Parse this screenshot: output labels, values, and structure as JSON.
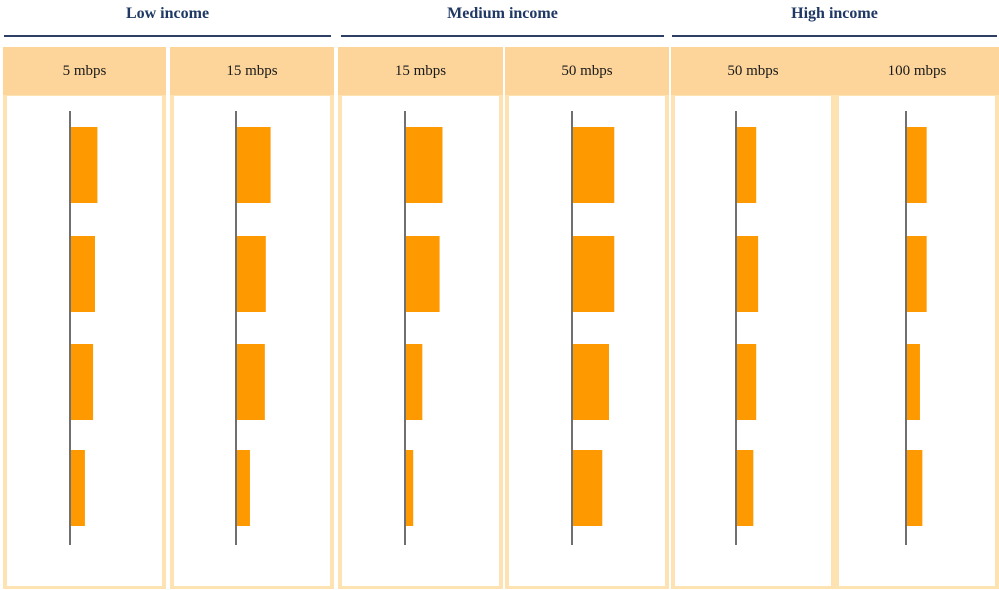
{
  "colors": {
    "bar": "#ff9900",
    "axis": "#707070",
    "panel_fill": "#fde3b2",
    "panel_header": "#fdd59a",
    "group_title": "#1f3864"
  },
  "groups": [
    {
      "label": "Low income"
    },
    {
      "label": "Medium income"
    },
    {
      "label": "High income"
    }
  ],
  "chart_data": {
    "type": "bar",
    "orientation": "horizontal",
    "grid": false,
    "axis_labels_shown": false,
    "panels": [
      {
        "group": "Low income",
        "label": "5 mbps",
        "values": [
          0.55,
          0.5,
          0.46,
          0.29
        ]
      },
      {
        "group": "Low income",
        "label": "15 mbps",
        "values": [
          0.7,
          0.6,
          0.58,
          0.27
        ]
      },
      {
        "group": "Medium income",
        "label": "15 mbps",
        "values": [
          0.76,
          0.7,
          0.34,
          0.15
        ]
      },
      {
        "group": "Medium income",
        "label": "50 mbps",
        "values": [
          0.86,
          0.86,
          0.75,
          0.61
        ]
      },
      {
        "group": "High income",
        "label": "50 mbps",
        "values": [
          0.4,
          0.44,
          0.4,
          0.34
        ]
      },
      {
        "group": "High income",
        "label": "100 mbps",
        "values": [
          0.41,
          0.41,
          0.27,
          0.32
        ]
      }
    ]
  }
}
